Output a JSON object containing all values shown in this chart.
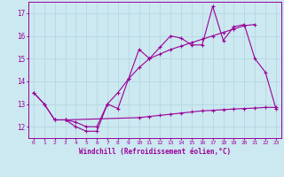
{
  "xlabel": "Windchill (Refroidissement éolien,°C)",
  "background_color": "#cce8f0",
  "line_color": "#990099",
  "grid_color": "#b0d4e0",
  "x_values": [
    0,
    1,
    2,
    3,
    4,
    5,
    6,
    7,
    8,
    9,
    10,
    11,
    12,
    13,
    14,
    15,
    16,
    17,
    18,
    19,
    20,
    21,
    22,
    23
  ],
  "line1_y": [
    13.5,
    13.0,
    12.3,
    12.3,
    12.0,
    11.8,
    11.8,
    13.0,
    12.8,
    14.1,
    15.4,
    15.0,
    15.5,
    16.0,
    15.9,
    15.6,
    15.6,
    17.3,
    15.8,
    16.4,
    16.5,
    15.0,
    14.4,
    12.8
  ],
  "line2_y": [
    13.5,
    13.0,
    12.3,
    12.3,
    12.2,
    12.0,
    12.0,
    13.0,
    13.5,
    14.1,
    14.6,
    15.0,
    15.2,
    15.4,
    15.55,
    15.7,
    15.85,
    16.0,
    16.15,
    16.3,
    16.45,
    16.5,
    null,
    null
  ],
  "line3_y": [
    null,
    null,
    12.3,
    12.3,
    null,
    null,
    null,
    null,
    null,
    null,
    12.4,
    12.45,
    12.5,
    12.55,
    12.6,
    12.65,
    12.7,
    12.72,
    12.75,
    12.78,
    12.8,
    12.82,
    12.85,
    12.85
  ],
  "ylim": [
    11.5,
    17.5
  ],
  "yticks": [
    12,
    13,
    14,
    15,
    16,
    17
  ],
  "xlim": [
    -0.5,
    23.5
  ]
}
